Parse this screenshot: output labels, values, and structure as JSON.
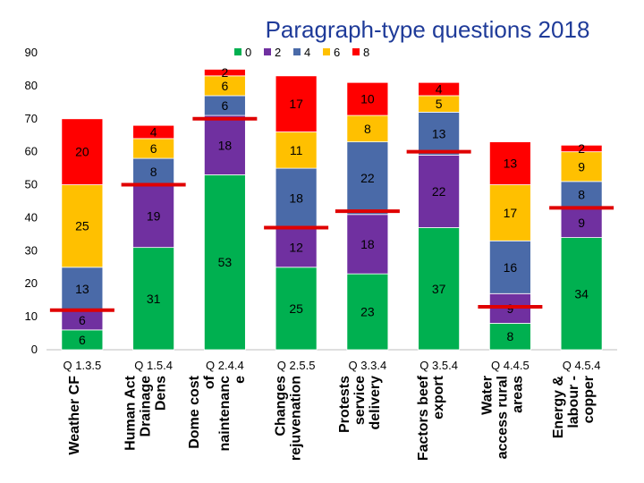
{
  "chart_data": {
    "type": "bar",
    "stacked": true,
    "title": "Paragraph-type questions 2018",
    "ylim": [
      0,
      90
    ],
    "y_ticks": [
      0,
      10,
      20,
      30,
      40,
      50,
      60,
      70,
      80,
      90
    ],
    "grid": false,
    "legend_position": "top",
    "categories": [
      {
        "code": "Q 1.3.5",
        "name_lines": [
          "Weather CF"
        ]
      },
      {
        "code": "Q 1.5.4",
        "name_lines": [
          "Human Act",
          "Drainage",
          "Dens"
        ]
      },
      {
        "code": "Q 2.4.4",
        "name_lines": [
          "Dome cost",
          "of",
          "naintenanc",
          "e"
        ]
      },
      {
        "code": "Q 2.5.5",
        "name_lines": [
          "Changes",
          "rejuvenation"
        ]
      },
      {
        "code": "Q 3.3.4",
        "name_lines": [
          "Protests",
          "service",
          "delivery"
        ]
      },
      {
        "code": "Q 3.5.4",
        "name_lines": [
          "Factors beef",
          "export"
        ]
      },
      {
        "code": "Q 4.4.5",
        "name_lines": [
          "Water",
          "access rural",
          "areas"
        ]
      },
      {
        "code": "Q 4.5.4",
        "name_lines": [
          "Energy &",
          "labour -",
          "copper"
        ]
      }
    ],
    "series": [
      {
        "name": "0",
        "color": "#00b050",
        "values": [
          6,
          31,
          53,
          25,
          23,
          37,
          8,
          34
        ]
      },
      {
        "name": "2",
        "color": "#7030a0",
        "values": [
          6,
          19,
          18,
          12,
          18,
          22,
          9,
          9
        ]
      },
      {
        "name": "4",
        "color": "#4a6aa8",
        "values": [
          13,
          8,
          6,
          18,
          22,
          13,
          16,
          8
        ]
      },
      {
        "name": "6",
        "color": "#ffc000",
        "values": [
          25,
          6,
          6,
          11,
          8,
          5,
          17,
          9
        ]
      },
      {
        "name": "8",
        "color": "#ff0000",
        "values": [
          20,
          4,
          2,
          17,
          10,
          4,
          13,
          2
        ]
      }
    ],
    "segment_labels": [
      [
        "6",
        "6",
        "13",
        "25",
        "20"
      ],
      [
        "31",
        "19",
        "8",
        "6",
        "4"
      ],
      [
        "53",
        "18",
        "6",
        "6",
        "2"
      ],
      [
        "25",
        "12",
        "18",
        "11",
        "17"
      ],
      [
        "23",
        "18",
        "22",
        "8",
        "10"
      ],
      [
        "37",
        "22",
        "13",
        "5",
        "4"
      ],
      [
        "8",
        "9",
        "16",
        "17",
        "13"
      ],
      [
        "34",
        "9",
        "8",
        "9",
        "2"
      ]
    ],
    "reference_marks": [
      12,
      50,
      70,
      37,
      42,
      60,
      13,
      43
    ]
  }
}
